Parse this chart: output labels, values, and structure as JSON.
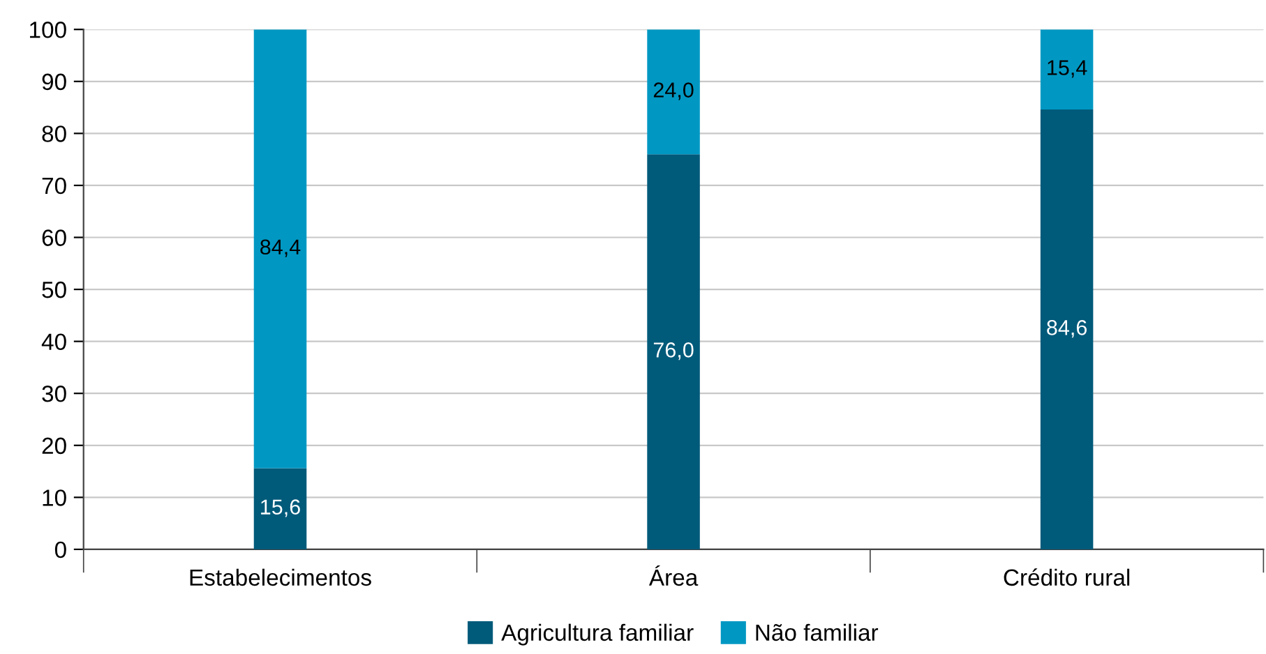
{
  "chart_data": {
    "type": "bar",
    "stacked": true,
    "categories": [
      "Estabelecimentos",
      "Área",
      "Crédito rural"
    ],
    "series": [
      {
        "name": "Agricultura familiar",
        "color": "#005a7a",
        "values": [
          15.6,
          76.0,
          84.6
        ],
        "value_labels": [
          "15,6",
          "76,0",
          "84,6"
        ]
      },
      {
        "name": "Não familiar",
        "color": "#0098c3",
        "values": [
          84.4,
          24.0,
          15.4
        ],
        "value_labels": [
          "84,4",
          "24,0",
          "15,4"
        ]
      }
    ],
    "ylim": [
      0,
      100
    ],
    "yticks": [
      0,
      10,
      20,
      30,
      40,
      50,
      60,
      70,
      80,
      90,
      100
    ],
    "grid": "y",
    "legend": "bottom"
  }
}
